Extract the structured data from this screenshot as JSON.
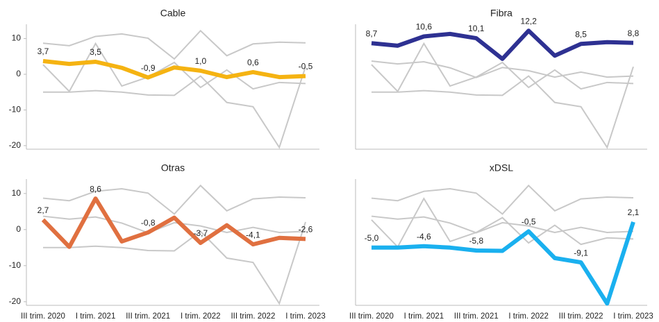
{
  "chart_data": [
    {
      "type": "line",
      "title": "Cable",
      "color": "#f5b312",
      "values": [
        3.7,
        2.9,
        3.5,
        1.8,
        -0.9,
        1.9,
        1.0,
        -0.8,
        0.6,
        -0.8,
        -0.5
      ],
      "value_labels": [
        "3,7",
        null,
        "3,5",
        null,
        "-0,9",
        null,
        "1,0",
        null,
        "0,6",
        null,
        "-0,5"
      ],
      "ylim": [
        -21,
        14
      ],
      "yticks": [
        -20,
        -10,
        0,
        10
      ]
    },
    {
      "type": "line",
      "title": "Fibra",
      "color": "#2e3192",
      "values": [
        8.7,
        8.0,
        10.6,
        11.3,
        10.1,
        4.3,
        12.2,
        5.2,
        8.5,
        9.0,
        8.8
      ],
      "value_labels": [
        "8,7",
        null,
        "10,6",
        null,
        "10,1",
        null,
        "12,2",
        null,
        "8,5",
        null,
        "8,8"
      ],
      "ylim": [
        -21,
        14
      ]
    },
    {
      "type": "line",
      "title": "Otras",
      "color": "#e07040",
      "values": [
        2.7,
        -4.8,
        8.6,
        -3.3,
        -0.8,
        3.3,
        -3.7,
        1.2,
        -4.1,
        -2.3,
        -2.6
      ],
      "value_labels": [
        "2,7",
        null,
        "8,6",
        null,
        "-0,8",
        null,
        "-3,7",
        null,
        "-4,1",
        null,
        "-2,6"
      ],
      "ylim": [
        -21,
        14
      ],
      "yticks": [
        -20,
        -10,
        0,
        10
      ],
      "categories": [
        "III trim. 2020",
        null,
        "I trim. 2021",
        null,
        "III trim. 2021",
        null,
        "I trim. 2022",
        null,
        "III trim. 2022",
        null,
        "I trim. 2023"
      ]
    },
    {
      "type": "line",
      "title": "xDSL",
      "color": "#1ab0ef",
      "values": [
        -5.0,
        -5.0,
        -4.6,
        -5.0,
        -5.8,
        -5.9,
        -0.5,
        -7.9,
        -9.1,
        -20.5,
        2.1
      ],
      "value_labels": [
        "-5,0",
        null,
        "-4,6",
        null,
        "-5,8",
        null,
        "-0,5",
        null,
        "-9,1",
        null,
        "2,1"
      ],
      "ylim": [
        -21,
        14
      ],
      "categories": [
        "III trim. 2020",
        null,
        "I trim. 2021",
        null,
        "III trim. 2021",
        null,
        "I trim. 2022",
        null,
        "III trim. 2022",
        null,
        "I trim. 2023"
      ]
    }
  ]
}
